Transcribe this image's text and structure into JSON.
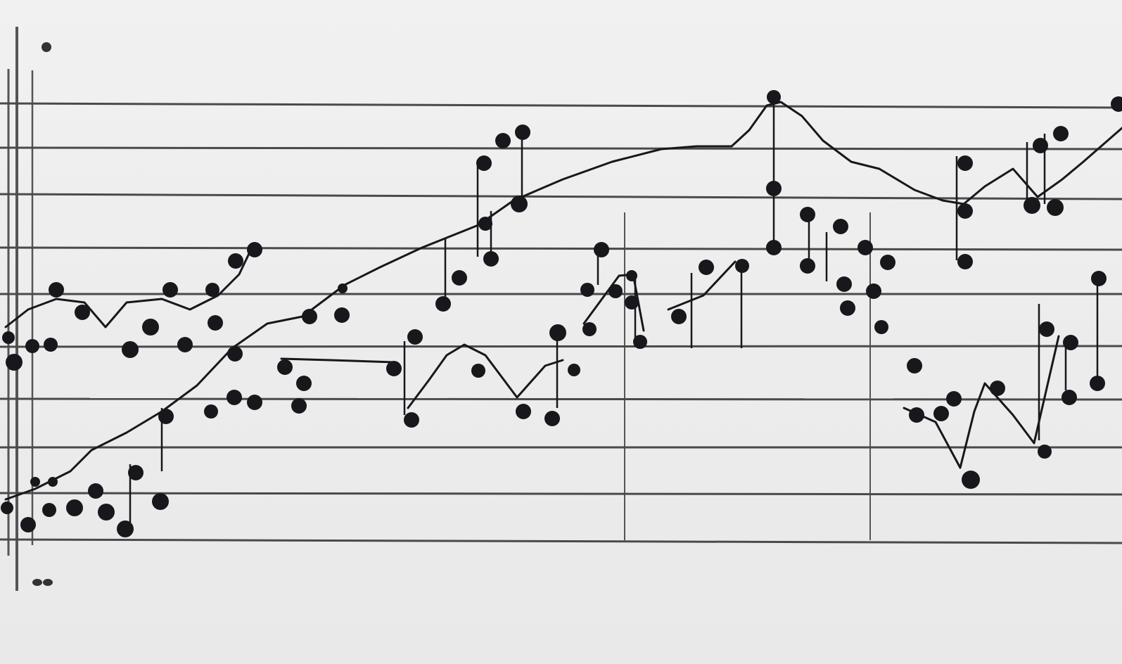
{
  "image": {
    "kind": "hand-drawn music staff with dot notes",
    "ink_color": "#17171c",
    "line_color": "#4a4a4a",
    "paper_color": "#ececec"
  },
  "staff": {
    "line_count": 10,
    "label": ""
  }
}
